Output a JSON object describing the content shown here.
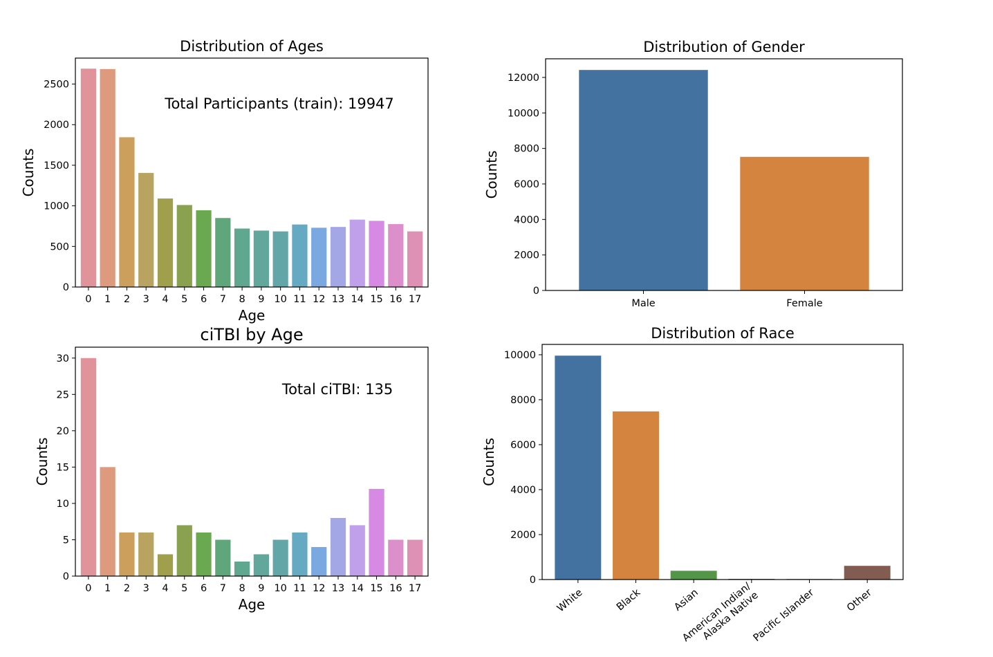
{
  "chart_data": [
    {
      "type": "bar",
      "title": "Distribution of Ages",
      "xlabel": "Age",
      "ylabel": "Counts",
      "annotation": "Total Participants (train): 19947",
      "categories": [
        "0",
        "1",
        "2",
        "3",
        "4",
        "5",
        "6",
        "7",
        "8",
        "9",
        "10",
        "11",
        "12",
        "13",
        "14",
        "15",
        "16",
        "17"
      ],
      "values": [
        2690,
        2685,
        1845,
        1405,
        1090,
        1010,
        945,
        850,
        720,
        695,
        685,
        770,
        730,
        740,
        830,
        815,
        775,
        685
      ],
      "ylim": [
        0,
        2820
      ],
      "yticks": [
        0,
        500,
        1000,
        1500,
        2000,
        2500
      ],
      "palette": "husl",
      "grid": false
    },
    {
      "type": "bar",
      "title": "Distribution of Gender",
      "xlabel": "",
      "ylabel": "Counts",
      "categories": [
        "Male",
        "Female"
      ],
      "values": [
        12420,
        7527
      ],
      "ylim": [
        0,
        13050
      ],
      "yticks": [
        0,
        2000,
        4000,
        6000,
        8000,
        10000,
        12000
      ],
      "colors": [
        "#4472a0",
        "#d5843f"
      ],
      "grid": false
    },
    {
      "type": "bar",
      "title": "ciTBI by Age",
      "xlabel": "Age",
      "ylabel": "Counts",
      "annotation": "Total ciTBI: 135",
      "categories": [
        "0",
        "1",
        "2",
        "3",
        "4",
        "5",
        "6",
        "7",
        "8",
        "9",
        "10",
        "11",
        "12",
        "13",
        "14",
        "15",
        "16",
        "17"
      ],
      "values": [
        30,
        15,
        6,
        6,
        3,
        7,
        6,
        5,
        2,
        3,
        5,
        6,
        4,
        8,
        7,
        12,
        5,
        5
      ],
      "ylim": [
        0,
        31.5
      ],
      "yticks": [
        0,
        5,
        10,
        15,
        20,
        25,
        30
      ],
      "palette": "husl",
      "grid": false
    },
    {
      "type": "bar",
      "title": "Distribution of Race",
      "xlabel": "",
      "ylabel": "Counts",
      "categories": [
        "White",
        "Black",
        "Asian",
        "American Indian/\nAlaska Native",
        "Pacific Islander",
        "Other"
      ],
      "values": [
        9960,
        7480,
        390,
        30,
        25,
        610
      ],
      "ylim": [
        0,
        10460
      ],
      "yticks": [
        0,
        2000,
        4000,
        6000,
        8000,
        10000
      ],
      "colors": [
        "#4472a0",
        "#d5843f",
        "#54954a",
        "#bf3f3f",
        "#8a6cab",
        "#835c51"
      ],
      "xtick_rotation": 40,
      "grid": false
    }
  ]
}
